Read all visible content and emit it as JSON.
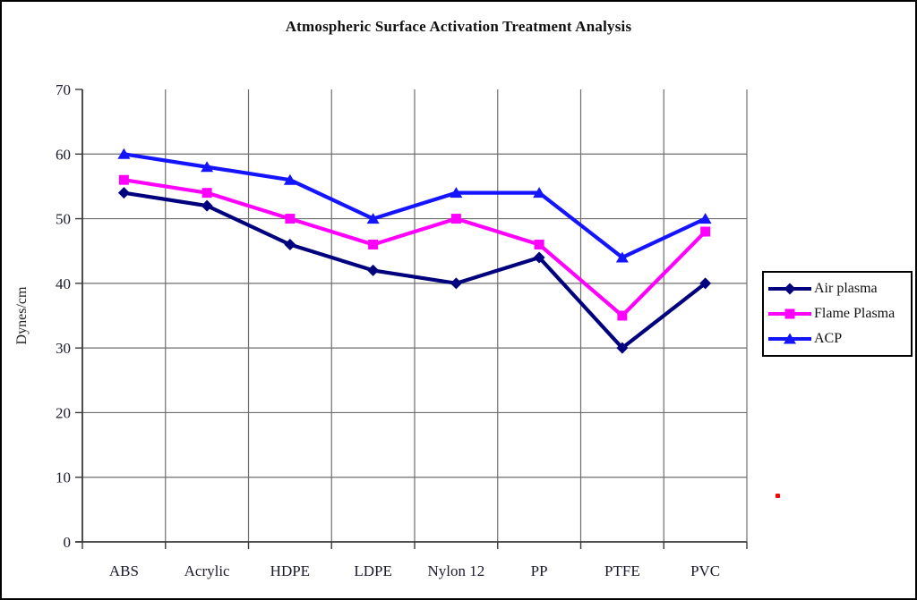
{
  "chart_data": {
    "type": "line",
    "title": "Atmospheric Surface Activation Treatment Analysis",
    "xlabel": "",
    "ylabel": "Dynes/cm",
    "categories": [
      "ABS",
      "Acrylic",
      "HDPE",
      "LDPE",
      "Nylon 12",
      "PP",
      "PTFE",
      "PVC"
    ],
    "yticks": [
      0,
      10,
      20,
      30,
      40,
      50,
      60,
      70
    ],
    "ylim": [
      0,
      70
    ],
    "grid": "both",
    "legend_position": "right",
    "series": [
      {
        "name": "Air plasma",
        "color": "#00007E",
        "marker": "diamond",
        "values": [
          54,
          52,
          46,
          42,
          40,
          44,
          30,
          40
        ]
      },
      {
        "name": "Flame Plasma",
        "color": "#FF00FF",
        "marker": "square",
        "values": [
          56,
          54,
          50,
          46,
          50,
          46,
          35,
          48
        ]
      },
      {
        "name": "ACP",
        "color": "#1414FF",
        "marker": "triangle",
        "values": [
          60,
          58,
          56,
          50,
          54,
          54,
          44,
          50
        ]
      }
    ]
  },
  "colors": {
    "gridline": "#6e6e6e",
    "axis": "#3a3a3a",
    "tick_text": "#1a1a2e",
    "red_dot": "#FF0000"
  }
}
